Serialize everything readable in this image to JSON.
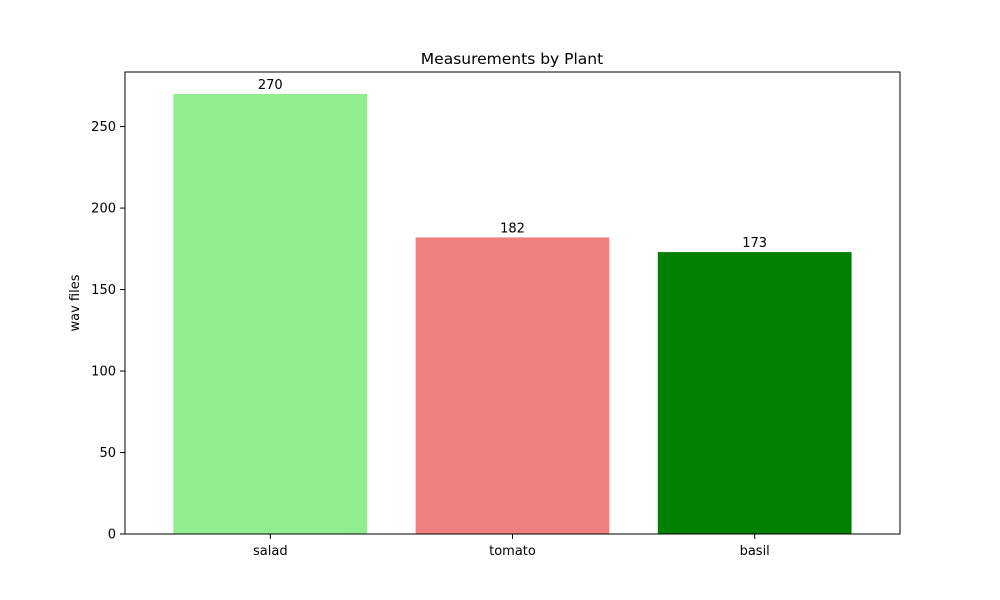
{
  "chart_data": {
    "type": "bar",
    "title": "Measurements by Plant",
    "xlabel": "",
    "ylabel": "wav files",
    "categories": [
      "salad",
      "tomato",
      "basil"
    ],
    "values": [
      270,
      182,
      173
    ],
    "data_labels": [
      "270",
      "182",
      "173"
    ],
    "colors": [
      "#90ee90",
      "#f08080",
      "#008000"
    ],
    "ylim": [
      0,
      283.5
    ],
    "yticks": [
      0,
      50,
      100,
      150,
      200,
      250
    ],
    "ytick_labels": [
      "0",
      "50",
      "100",
      "150",
      "200",
      "250"
    ],
    "grid": false,
    "legend": "none"
  }
}
